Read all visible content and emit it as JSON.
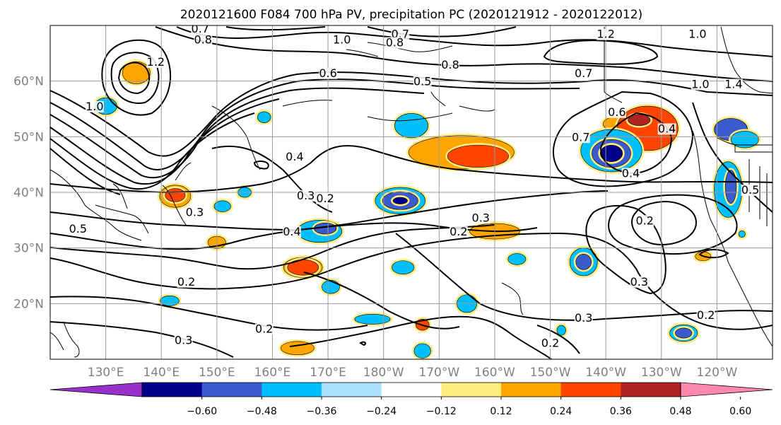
{
  "figure": {
    "title": "2020121600 F084 700 hPa PV, precipitation PC (2020121912 - 2020122012)",
    "lon_ticks": [
      "130°E",
      "140°E",
      "150°E",
      "160°E",
      "170°E",
      "180°W",
      "170°W",
      "160°W",
      "150°W",
      "140°W",
      "130°W",
      "120°W"
    ],
    "lat_ticks": [
      "60°N",
      "50°N",
      "40°N",
      "30°N",
      "20°N"
    ],
    "map_extent": {
      "lon_min": 120,
      "lon_max": 250,
      "lat_min": 10,
      "lat_max": 70
    }
  },
  "colorbar": {
    "tick_labels": [
      "−0.60",
      "−0.48",
      "−0.36",
      "−0.24",
      "−0.12",
      "0.12",
      "0.24",
      "0.36",
      "0.48",
      "0.60"
    ],
    "levels": [
      -0.6,
      -0.48,
      -0.36,
      -0.24,
      -0.12,
      0.12,
      0.24,
      0.36,
      0.48,
      0.6
    ],
    "colors": [
      "#9932CC",
      "#00008B",
      "#3A5BCC",
      "#00BFFF",
      "#ADDFFF",
      "#FFFFFF",
      "#FFEB80",
      "#FFA500",
      "#FF4500",
      "#B22222",
      "#FF88B0"
    ],
    "extend": "both"
  },
  "contour_labels": [
    {
      "text": "0.7",
      "lon": 147,
      "lat": 69
    },
    {
      "text": "0.8",
      "lon": 147.5,
      "lat": 67
    },
    {
      "text": "1.2",
      "lon": 139,
      "lat": 63
    },
    {
      "text": "1.0",
      "lon": 128,
      "lat": 55
    },
    {
      "text": "1.0",
      "lon": 172.5,
      "lat": 67
    },
    {
      "text": "0.7",
      "lon": 183,
      "lat": 68
    },
    {
      "text": "0.8",
      "lon": 182,
      "lat": 66.5
    },
    {
      "text": "0.8",
      "lon": 192,
      "lat": 62.5
    },
    {
      "text": "0.6",
      "lon": 170,
      "lat": 61
    },
    {
      "text": "0.5",
      "lon": 187,
      "lat": 59.5
    },
    {
      "text": "0.7",
      "lon": 216,
      "lat": 61
    },
    {
      "text": "1.2",
      "lon": 220,
      "lat": 68
    },
    {
      "text": "1.0",
      "lon": 236.5,
      "lat": 68
    },
    {
      "text": "1.0",
      "lon": 237,
      "lat": 59
    },
    {
      "text": "1.4",
      "lon": 243,
      "lat": 59
    },
    {
      "text": "0.6",
      "lon": 222,
      "lat": 54
    },
    {
      "text": "0.4",
      "lon": 231,
      "lat": 51
    },
    {
      "text": "0.7",
      "lon": 215.5,
      "lat": 49.5
    },
    {
      "text": "0.4",
      "lon": 164,
      "lat": 46
    },
    {
      "text": "0.4",
      "lon": 224.5,
      "lat": 43
    },
    {
      "text": "0.3",
      "lon": 166,
      "lat": 39
    },
    {
      "text": "0.2",
      "lon": 169.5,
      "lat": 38.5
    },
    {
      "text": "0.3",
      "lon": 146,
      "lat": 36
    },
    {
      "text": "0.5",
      "lon": 125,
      "lat": 33
    },
    {
      "text": "0.4",
      "lon": 163.5,
      "lat": 32.5
    },
    {
      "text": "0.2",
      "lon": 193.5,
      "lat": 32.5
    },
    {
      "text": "0.3",
      "lon": 197.5,
      "lat": 35
    },
    {
      "text": "0.2",
      "lon": 227,
      "lat": 34.5
    },
    {
      "text": "0.2",
      "lon": 144.5,
      "lat": 23.5
    },
    {
      "text": "0.3",
      "lon": 226,
      "lat": 23.5
    },
    {
      "text": "0.3",
      "lon": 216,
      "lat": 17
    },
    {
      "text": "0.2",
      "lon": 238,
      "lat": 17.5
    },
    {
      "text": "0.2",
      "lon": 158.5,
      "lat": 15
    },
    {
      "text": "0.3",
      "lon": 144,
      "lat": 13
    },
    {
      "text": "0.2",
      "lon": 210,
      "lat": 12.5
    },
    {
      "text": "0.5",
      "lon": 246,
      "lat": 40
    }
  ],
  "precip_blobs": [
    {
      "lon": 135.5,
      "lat": 61.5,
      "rx": 2.5,
      "ry": 2,
      "color": "#FFA500"
    },
    {
      "lon": 130,
      "lat": 55.5,
      "rx": 2,
      "ry": 1.5,
      "color": "#00BFFF"
    },
    {
      "lon": 158.5,
      "lat": 53.5,
      "rx": 1.2,
      "ry": 1,
      "color": "#00BFFF"
    },
    {
      "lon": 185,
      "lat": 52,
      "rx": 3,
      "ry": 2.2,
      "color": "#00BFFF"
    },
    {
      "lon": 194,
      "lat": 47.2,
      "rx": 9.5,
      "ry": 3,
      "color": "#FFA500"
    },
    {
      "lon": 197,
      "lat": 46.5,
      "rx": 5.5,
      "ry": 2,
      "color": "#FF4500"
    },
    {
      "lon": 222,
      "lat": 52.3,
      "rx": 2.5,
      "ry": 1.3,
      "color": "#FFA500"
    },
    {
      "lon": 227.5,
      "lat": 51.5,
      "rx": 5.5,
      "ry": 4,
      "color": "#FF4500"
    },
    {
      "lon": 226,
      "lat": 53,
      "rx": 2,
      "ry": 1,
      "color": "#B22222"
    },
    {
      "lon": 221,
      "lat": 47.5,
      "rx": 5.5,
      "ry": 3.8,
      "color": "#00BFFF"
    },
    {
      "lon": 221,
      "lat": 47,
      "rx": 3.5,
      "ry": 2.5,
      "color": "#3A5BCC"
    },
    {
      "lon": 221,
      "lat": 47,
      "rx": 2,
      "ry": 1.5,
      "color": "#00008B"
    },
    {
      "lon": 242.5,
      "lat": 51.3,
      "rx": 3,
      "ry": 2,
      "color": "#3A5BCC"
    },
    {
      "lon": 245,
      "lat": 49.5,
      "rx": 2.5,
      "ry": 1.5,
      "color": "#00BFFF"
    },
    {
      "lon": 242,
      "lat": 40.5,
      "rx": 2.5,
      "ry": 5,
      "color": "#00BFFF"
    },
    {
      "lon": 242.5,
      "lat": 41,
      "rx": 1,
      "ry": 3,
      "color": "#3A5BCC"
    },
    {
      "lon": 142.5,
      "lat": 39.3,
      "rx": 2.8,
      "ry": 2,
      "color": "#FFA500"
    },
    {
      "lon": 142.5,
      "lat": 39.5,
      "rx": 1.8,
      "ry": 1.2,
      "color": "#FF4500"
    },
    {
      "lon": 155,
      "lat": 40,
      "rx": 1.2,
      "ry": 0.9,
      "color": "#00BFFF"
    },
    {
      "lon": 151,
      "lat": 37.5,
      "rx": 1.5,
      "ry": 1,
      "color": "#00BFFF"
    },
    {
      "lon": 150,
      "lat": 31,
      "rx": 1.6,
      "ry": 1.1,
      "color": "#FFA500"
    },
    {
      "lon": 168.5,
      "lat": 33,
      "rx": 4,
      "ry": 2,
      "color": "#00BFFF"
    },
    {
      "lon": 169.5,
      "lat": 33.5,
      "rx": 2,
      "ry": 1,
      "color": "#3A5BCC"
    },
    {
      "lon": 183,
      "lat": 38.5,
      "rx": 4.5,
      "ry": 2.4,
      "color": "#00BFFF"
    },
    {
      "lon": 183,
      "lat": 38.5,
      "rx": 3.2,
      "ry": 1.6,
      "color": "#3A5BCC"
    },
    {
      "lon": 183,
      "lat": 38.5,
      "rx": 1.3,
      "ry": 0.6,
      "color": "#00008B"
    },
    {
      "lon": 200,
      "lat": 33,
      "rx": 4.5,
      "ry": 1.4,
      "color": "#FFA500"
    },
    {
      "lon": 165.5,
      "lat": 26.5,
      "rx": 3.5,
      "ry": 1.8,
      "color": "#FFA500"
    },
    {
      "lon": 165.5,
      "lat": 26.5,
      "rx": 2.8,
      "ry": 1.4,
      "color": "#FF4500"
    },
    {
      "lon": 183.5,
      "lat": 26.5,
      "rx": 2,
      "ry": 1.2,
      "color": "#00BFFF"
    },
    {
      "lon": 170.5,
      "lat": 23,
      "rx": 1.6,
      "ry": 1.2,
      "color": "#00BFFF"
    },
    {
      "lon": 204,
      "lat": 28,
      "rx": 1.6,
      "ry": 1,
      "color": "#00BFFF"
    },
    {
      "lon": 216,
      "lat": 27.5,
      "rx": 2.5,
      "ry": 2.5,
      "color": "#00BFFF"
    },
    {
      "lon": 216,
      "lat": 27.5,
      "rx": 1.4,
      "ry": 1.4,
      "color": "#3A5BCC"
    },
    {
      "lon": 141.5,
      "lat": 20.5,
      "rx": 1.7,
      "ry": 0.9,
      "color": "#00BFFF"
    },
    {
      "lon": 195,
      "lat": 20,
      "rx": 1.8,
      "ry": 1.6,
      "color": "#00BFFF"
    },
    {
      "lon": 178,
      "lat": 17.2,
      "rx": 3.2,
      "ry": 0.9,
      "color": "#00BFFF"
    },
    {
      "lon": 187,
      "lat": 16.2,
      "rx": 1.2,
      "ry": 1,
      "color": "#FF4500"
    },
    {
      "lon": 212,
      "lat": 15.2,
      "rx": 0.8,
      "ry": 0.9,
      "color": "#00BFFF"
    },
    {
      "lon": 234,
      "lat": 14.7,
      "rx": 2.5,
      "ry": 1.5,
      "color": "#00BFFF"
    },
    {
      "lon": 234,
      "lat": 14.7,
      "rx": 1.5,
      "ry": 0.9,
      "color": "#3A5BCC"
    },
    {
      "lon": 164.5,
      "lat": 12,
      "rx": 3,
      "ry": 1.2,
      "color": "#FFA500"
    },
    {
      "lon": 187,
      "lat": 11.5,
      "rx": 1.5,
      "ry": 1.3,
      "color": "#00BFFF"
    },
    {
      "lon": 237.5,
      "lat": 28.5,
      "rx": 1.4,
      "ry": 0.8,
      "color": "#FFA500"
    },
    {
      "lon": 244.5,
      "lat": 32.5,
      "rx": 0.6,
      "ry": 0.6,
      "color": "#00BFFF"
    }
  ]
}
